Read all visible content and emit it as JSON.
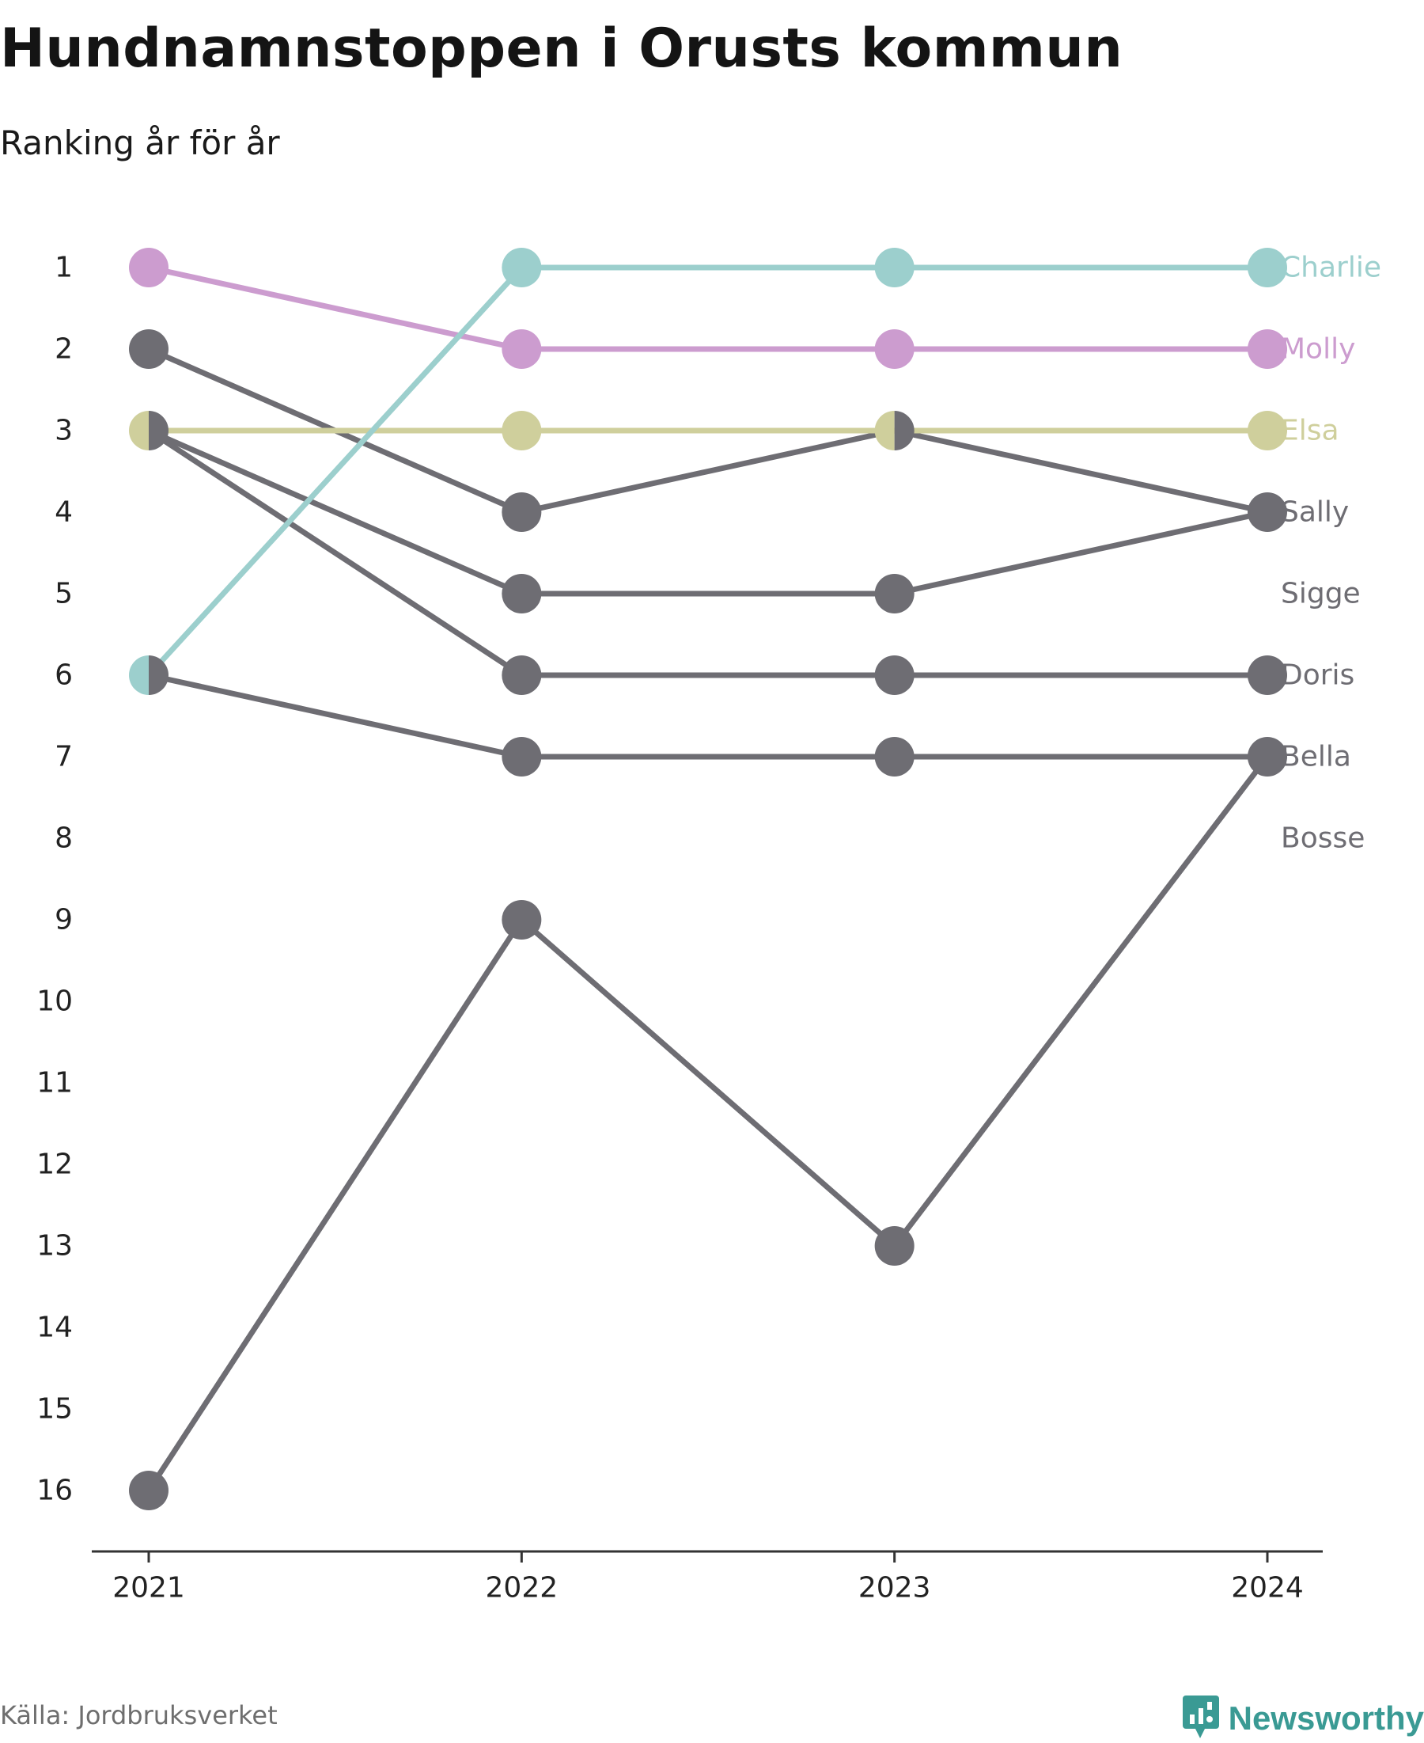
{
  "header": {
    "title": "Hundnamnstoppen i Orusts kommun",
    "subtitle": "Ranking år för år"
  },
  "footer": {
    "source": "Källa: Jordbruksverket",
    "brand": "Newsworthy",
    "brand_icon": "newsworthy-logo-icon"
  },
  "colors": {
    "charlie": "#9ccfcd",
    "molly": "#cc9ccf",
    "elsa": "#cfcf9c",
    "grey": "#6e6d73",
    "axis": "#333333",
    "brand": "#3a9a94"
  },
  "chart_data": {
    "type": "line",
    "subtype": "bump",
    "title": "Hundnamnstoppen i Orusts kommun",
    "subtitle": "Ranking år för år",
    "xlabel": "",
    "ylabel": "",
    "x": [
      "2021",
      "2022",
      "2023",
      "2024"
    ],
    "ylim": [
      16,
      1
    ],
    "y_reversed": true,
    "yticks": [
      1,
      2,
      3,
      4,
      5,
      6,
      7,
      8,
      9,
      10,
      11,
      12,
      13,
      14,
      15,
      16
    ],
    "grid": false,
    "legend": "direct labels at right end",
    "series": [
      {
        "name": "Bosse",
        "values": [
          16,
          9,
          13,
          7
        ],
        "color": "#6e6d73"
      },
      {
        "name": "Bella",
        "values": [
          6,
          7,
          7,
          7
        ],
        "color": "#6e6d73"
      },
      {
        "name": "Doris",
        "values": [
          3,
          6,
          6,
          6
        ],
        "color": "#6e6d73"
      },
      {
        "name": "Sigge",
        "values": [
          3,
          5,
          5,
          4
        ],
        "color": "#6e6d73"
      },
      {
        "name": "Sally",
        "values": [
          2,
          4,
          3,
          4
        ],
        "color": "#6e6d73"
      },
      {
        "name": "Elsa",
        "values": [
          3,
          3,
          3,
          3
        ],
        "color": "#cfcf9c"
      },
      {
        "name": "Molly",
        "values": [
          1,
          2,
          2,
          2
        ],
        "color": "#cc9ccf"
      },
      {
        "name": "Charlie",
        "values": [
          6,
          1,
          1,
          1
        ],
        "color": "#9ccfcd"
      }
    ],
    "labels": [
      {
        "name": "Charlie",
        "rank": 1,
        "color": "#9ccfcd"
      },
      {
        "name": "Molly",
        "rank": 2,
        "color": "#cc9ccf"
      },
      {
        "name": "Elsa",
        "rank": 3,
        "color": "#cfcf9c"
      },
      {
        "name": "Sally",
        "rank": 4,
        "color": "#6e6d73"
      },
      {
        "name": "Sigge",
        "rank": 5,
        "color": "#6e6d73"
      },
      {
        "name": "Doris",
        "rank": 6,
        "color": "#6e6d73"
      },
      {
        "name": "Bella",
        "rank": 7,
        "color": "#6e6d73"
      },
      {
        "name": "Bosse",
        "rank": 8,
        "color": "#6e6d73"
      }
    ]
  }
}
